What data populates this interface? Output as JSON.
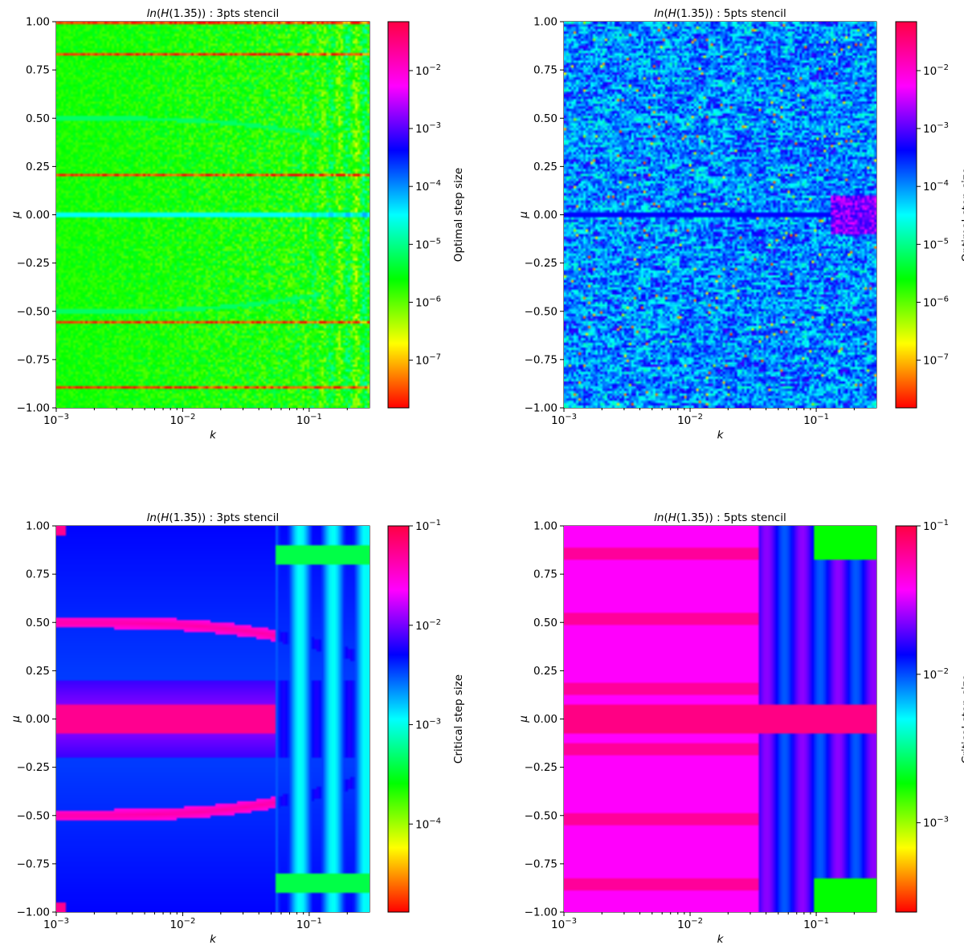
{
  "chart_data": [
    {
      "type": "heatmap",
      "panel": "top-left",
      "title_prefix": "ln",
      "title_func": "H",
      "title_arg": "(1.35))",
      "title_suffix": " : 3pts stencil",
      "xlabel": "k",
      "ylabel": "μ",
      "xscale": "log",
      "xlim": [
        0.001,
        0.3
      ],
      "ylim": [
        -1.0,
        1.0
      ],
      "x_ticks": [
        {
          "base": "10",
          "exp": "−3",
          "value": 0.001
        },
        {
          "base": "10",
          "exp": "−2",
          "value": 0.01
        },
        {
          "base": "10",
          "exp": "−1",
          "value": 0.1
        }
      ],
      "y_ticks": [
        "−1.00",
        "−0.75",
        "−0.50",
        "−0.25",
        "0.00",
        "0.25",
        "0.50",
        "0.75",
        "1.00"
      ],
      "colorbar": {
        "label": "Optimal step size",
        "scale": "log",
        "range": [
          1.5e-08,
          0.07
        ],
        "ticks": [
          {
            "base": "10",
            "exp": "−2",
            "value": 0.01
          },
          {
            "base": "10",
            "exp": "−3",
            "value": 0.001
          },
          {
            "base": "10",
            "exp": "−4",
            "value": 0.0001
          },
          {
            "base": "10",
            "exp": "−5",
            "value": 1e-05
          },
          {
            "base": "10",
            "exp": "−6",
            "value": 1e-06
          },
          {
            "base": "10",
            "exp": "−7",
            "value": 1e-07
          }
        ]
      },
      "colormap": "hsv (red = low, magenta = high)",
      "dominant_value": 1e-06
    },
    {
      "type": "heatmap",
      "panel": "top-right",
      "title_prefix": "ln",
      "title_func": "H",
      "title_arg": "(1.35))",
      "title_suffix": " : 5pts stencil",
      "xlabel": "k",
      "ylabel": "μ",
      "xscale": "log",
      "xlim": [
        0.001,
        0.3
      ],
      "ylim": [
        -1.0,
        1.0
      ],
      "x_ticks": [
        {
          "base": "10",
          "exp": "−3",
          "value": 0.001
        },
        {
          "base": "10",
          "exp": "−2",
          "value": 0.01
        },
        {
          "base": "10",
          "exp": "−1",
          "value": 0.1
        }
      ],
      "y_ticks": [
        "−1.00",
        "−0.75",
        "−0.50",
        "−0.25",
        "0.00",
        "0.25",
        "0.50",
        "0.75",
        "1.00"
      ],
      "colorbar": {
        "label": "Optimal step size",
        "scale": "log",
        "range": [
          1.5e-08,
          0.07
        ],
        "ticks": [
          {
            "base": "10",
            "exp": "−2",
            "value": 0.01
          },
          {
            "base": "10",
            "exp": "−3",
            "value": 0.001
          },
          {
            "base": "10",
            "exp": "−4",
            "value": 0.0001
          },
          {
            "base": "10",
            "exp": "−5",
            "value": 1e-05
          },
          {
            "base": "10",
            "exp": "−6",
            "value": 1e-06
          },
          {
            "base": "10",
            "exp": "−7",
            "value": 1e-07
          }
        ]
      },
      "colormap": "hsv (red = low, magenta = high)",
      "dominant_value": 0.0003
    },
    {
      "type": "heatmap",
      "panel": "bottom-left",
      "title_prefix": "ln",
      "title_func": "H",
      "title_arg": "(1.35))",
      "title_suffix": " : 3pts stencil",
      "xlabel": "k",
      "ylabel": "μ",
      "xscale": "log",
      "xlim": [
        0.001,
        0.3
      ],
      "ylim": [
        -1.0,
        1.0
      ],
      "x_ticks": [
        {
          "base": "10",
          "exp": "−3",
          "value": 0.001
        },
        {
          "base": "10",
          "exp": "−2",
          "value": 0.01
        },
        {
          "base": "10",
          "exp": "−1",
          "value": 0.1
        }
      ],
      "y_ticks": [
        "−1.00",
        "−0.75",
        "−0.50",
        "−0.25",
        "0.00",
        "0.25",
        "0.50",
        "0.75",
        "1.00"
      ],
      "colorbar": {
        "label": "Critical step size",
        "scale": "log",
        "range": [
          1.3e-05,
          0.1
        ],
        "ticks": [
          {
            "base": "10",
            "exp": "−1",
            "value": 0.1
          },
          {
            "base": "10",
            "exp": "−2",
            "value": 0.01
          },
          {
            "base": "10",
            "exp": "−3",
            "value": 0.001
          },
          {
            "base": "10",
            "exp": "−4",
            "value": 0.0001
          }
        ]
      },
      "colormap": "hsv (red = low, magenta = high)",
      "dominant_value": 0.007
    },
    {
      "type": "heatmap",
      "panel": "bottom-right",
      "title_prefix": "ln",
      "title_func": "H",
      "title_arg": "(1.35))",
      "title_suffix": " : 5pts stencil",
      "xlabel": "k",
      "ylabel": "μ",
      "xscale": "log",
      "xlim": [
        0.001,
        0.3
      ],
      "ylim": [
        -1.0,
        1.0
      ],
      "x_ticks": [
        {
          "base": "10",
          "exp": "−3",
          "value": 0.001
        },
        {
          "base": "10",
          "exp": "−2",
          "value": 0.01
        },
        {
          "base": "10",
          "exp": "−1",
          "value": 0.1
        }
      ],
      "y_ticks": [
        "−1.00",
        "−0.75",
        "−0.50",
        "−0.25",
        "0.00",
        "0.25",
        "0.50",
        "0.75",
        "1.00"
      ],
      "colorbar": {
        "label": "Critical step size",
        "scale": "log",
        "range": [
          0.00025,
          0.1
        ],
        "ticks": [
          {
            "base": "10",
            "exp": "−1",
            "value": 0.1
          },
          {
            "base": "10",
            "exp": "−2",
            "value": 0.01
          },
          {
            "base": "10",
            "exp": "−3",
            "value": 0.001
          }
        ]
      },
      "colormap": "hsv (red = low, magenta = high)",
      "dominant_value": 0.05
    }
  ]
}
